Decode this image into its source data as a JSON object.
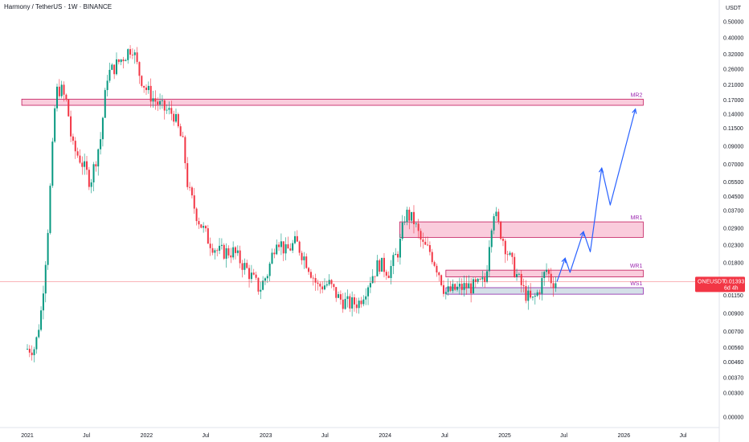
{
  "header": {
    "title": "Harmony / TetherUS · 1W · BINANCE",
    "currency": "USDT"
  },
  "price_badge": {
    "symbol": "ONEUSDT",
    "price": "0.01393",
    "countdown": "6d 4h",
    "color": "#f23645"
  },
  "colors": {
    "up": "#089981",
    "down": "#f23645",
    "resistance_fill": "#f8bbd0",
    "resistance_stroke": "#c2185b",
    "support_fill": "#cfdde6",
    "support_stroke": "#8e24aa",
    "label": "#9c27b0",
    "projection": "#2962ff"
  },
  "chart_data": {
    "type": "candlestick",
    "title": "Harmony / TetherUS · 1W · BINANCE",
    "y_scale": "log",
    "y_ticks": [
      "0.50000",
      "0.40000",
      "0.32000",
      "0.26000",
      "0.21000",
      "0.17000",
      "0.14000",
      "0.11500",
      "0.09000",
      "0.07000",
      "0.05500",
      "0.04500",
      "0.03700",
      "0.02900",
      "0.02300",
      "0.01800",
      "0.01150",
      "0.00900",
      "0.00700",
      "0.00560",
      "0.00460",
      "0.00370",
      "0.00300",
      "0.00000"
    ],
    "x_ticks": [
      "2021",
      "Jul",
      "2022",
      "Jul",
      "2023",
      "Jul",
      "2024",
      "Jul",
      "2025",
      "Jul",
      "2026",
      "Jul"
    ],
    "price_path": [
      [
        "2021-01-01",
        0.0055
      ],
      [
        "2021-02-01",
        0.0056
      ],
      [
        "2021-02-20",
        0.0095
      ],
      [
        "2021-03-10",
        0.025
      ],
      [
        "2021-03-25",
        0.08
      ],
      [
        "2021-04-05",
        0.19
      ],
      [
        "2021-04-20",
        0.2
      ],
      [
        "2021-05-10",
        0.16
      ],
      [
        "2021-05-25",
        0.09
      ],
      [
        "2021-06-20",
        0.075
      ],
      [
        "2021-07-20",
        0.055
      ],
      [
        "2021-08-20",
        0.1
      ],
      [
        "2021-09-10",
        0.24
      ],
      [
        "2021-10-10",
        0.28
      ],
      [
        "2021-11-05",
        0.32
      ],
      [
        "2021-11-25",
        0.36
      ],
      [
        "2021-12-15",
        0.25
      ],
      [
        "2022-01-05",
        0.2
      ],
      [
        "2022-02-01",
        0.17
      ],
      [
        "2022-03-01",
        0.15
      ],
      [
        "2022-04-01",
        0.14
      ],
      [
        "2022-05-01",
        0.09
      ],
      [
        "2022-05-15",
        0.05
      ],
      [
        "2022-06-15",
        0.033
      ],
      [
        "2022-07-15",
        0.025
      ],
      [
        "2022-08-15",
        0.021
      ],
      [
        "2022-10-01",
        0.021
      ],
      [
        "2022-11-15",
        0.016
      ],
      [
        "2022-12-20",
        0.0125
      ],
      [
        "2023-01-15",
        0.016
      ],
      [
        "2023-02-10",
        0.026
      ],
      [
        "2023-03-10",
        0.021
      ],
      [
        "2023-04-10",
        0.024
      ],
      [
        "2023-05-15",
        0.018
      ],
      [
        "2023-06-15",
        0.013
      ],
      [
        "2023-07-20",
        0.0135
      ],
      [
        "2023-08-20",
        0.011
      ],
      [
        "2023-09-20",
        0.0102
      ],
      [
        "2023-10-20",
        0.0105
      ],
      [
        "2023-11-20",
        0.014
      ],
      [
        "2023-12-20",
        0.018
      ],
      [
        "2024-01-20",
        0.016
      ],
      [
        "2024-02-20",
        0.022
      ],
      [
        "2024-03-10",
        0.036
      ],
      [
        "2024-04-05",
        0.032
      ],
      [
        "2024-05-01",
        0.023
      ],
      [
        "2024-05-25",
        0.021
      ],
      [
        "2024-06-20",
        0.016
      ],
      [
        "2024-07-10",
        0.012
      ],
      [
        "2024-08-10",
        0.0125
      ],
      [
        "2024-09-10",
        0.013
      ],
      [
        "2024-10-10",
        0.013
      ],
      [
        "2024-11-10",
        0.014
      ],
      [
        "2024-11-25",
        0.028
      ],
      [
        "2024-12-05",
        0.038
      ],
      [
        "2024-12-20",
        0.03
      ],
      [
        "2025-01-20",
        0.02
      ],
      [
        "2025-02-15",
        0.015
      ],
      [
        "2025-03-10",
        0.012
      ],
      [
        "2025-04-01",
        0.0105
      ],
      [
        "2025-04-20",
        0.012
      ],
      [
        "2025-05-15",
        0.0165
      ],
      [
        "2025-06-01",
        0.014
      ],
      [
        "2025-06-10",
        0.0139
      ]
    ],
    "projection_path": [
      [
        "2025-06-10",
        0.0139
      ],
      [
        "2025-07-05",
        0.0192
      ],
      [
        "2025-07-20",
        0.0158
      ],
      [
        "2025-08-30",
        0.0277
      ],
      [
        "2025-09-20",
        0.021
      ],
      [
        "2025-10-25",
        0.0665
      ],
      [
        "2025-11-20",
        0.04
      ],
      [
        "2026-02-05",
        0.15
      ]
    ],
    "zones": [
      {
        "label": "MR2",
        "low": 0.158,
        "high": 0.172,
        "x_start": "2020-12-15",
        "x_end": "2026-03-01",
        "type": "resistance"
      },
      {
        "label": "MR1",
        "low": 0.0256,
        "high": 0.0317,
        "x_start": "2024-02-15",
        "x_end": "2026-03-01",
        "type": "resistance"
      },
      {
        "label": "WR1",
        "low": 0.01485,
        "high": 0.0163,
        "x_start": "2024-07-05",
        "x_end": "2026-03-01",
        "type": "resistance"
      },
      {
        "label": "WS1",
        "low": 0.0117,
        "high": 0.0128,
        "x_start": "2024-07-05",
        "x_end": "2026-03-01",
        "type": "support"
      }
    ],
    "current_price": 0.01393,
    "legend": "none",
    "grid": false
  }
}
